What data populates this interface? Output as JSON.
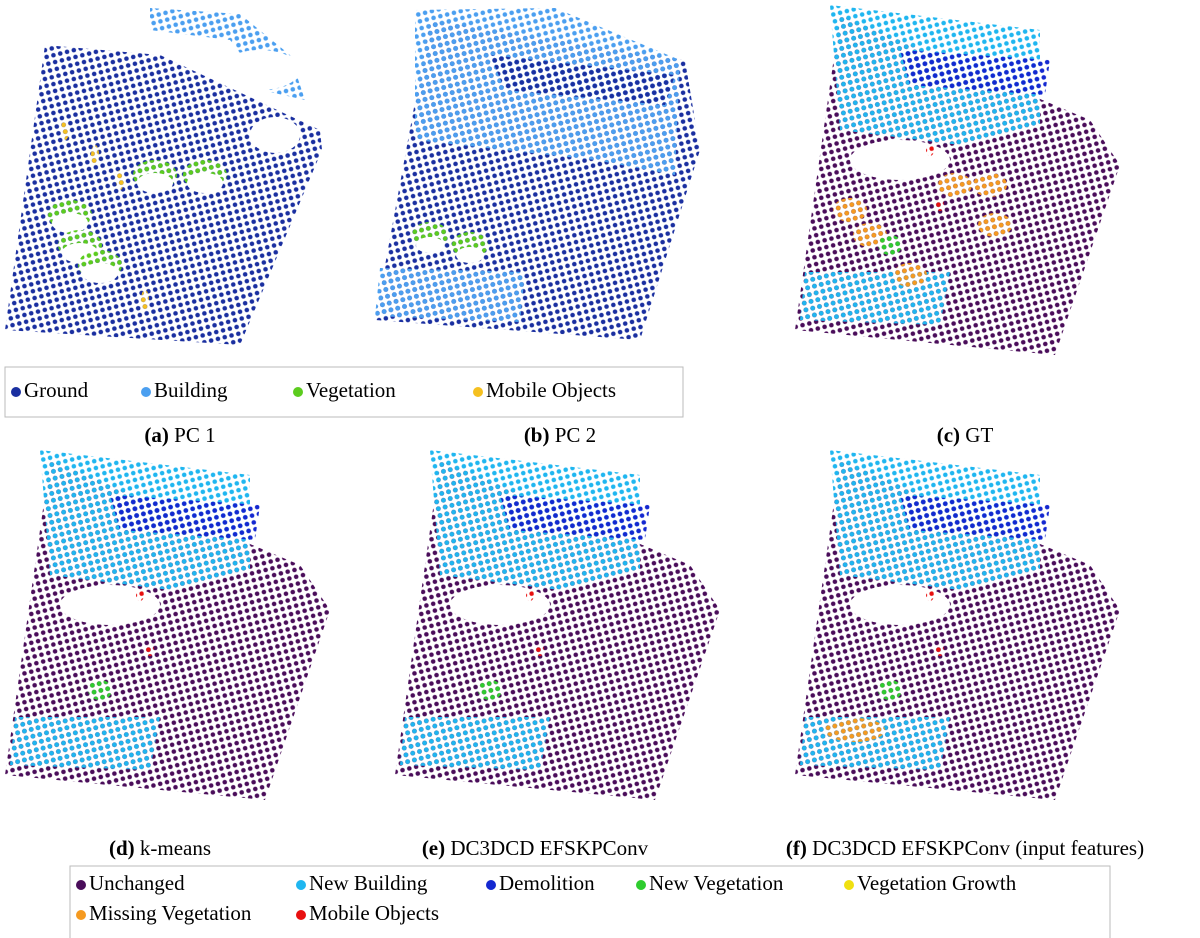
{
  "panels": [
    {
      "label": "(a)",
      "caption": "PC 1"
    },
    {
      "label": "(b)",
      "caption": "PC 2"
    },
    {
      "label": "(c)",
      "caption": "GT"
    },
    {
      "label": "(d)",
      "caption": "k-means"
    },
    {
      "label": "(e)",
      "caption": "DC3DCD EFSKPConv"
    },
    {
      "label": "(f)",
      "caption": "DC3DCD EFSKPConv (input features)"
    }
  ],
  "legend_top": {
    "items": [
      {
        "name": "Ground",
        "color": "#1a2fa0"
      },
      {
        "name": "Building",
        "color": "#4b9ff0"
      },
      {
        "name": "Vegetation",
        "color": "#5ccc1e"
      },
      {
        "name": "Mobile Objects",
        "color": "#f5c020"
      }
    ]
  },
  "legend_bottom": {
    "items": [
      {
        "name": "Unchanged",
        "color": "#4a0d5a"
      },
      {
        "name": "New Building",
        "color": "#1fb6f0"
      },
      {
        "name": "Demolition",
        "color": "#1428d0"
      },
      {
        "name": "New Vegetation",
        "color": "#2ecc2e"
      },
      {
        "name": "Vegetation Growth",
        "color": "#f0e010"
      },
      {
        "name": "Missing Vegetation",
        "color": "#f59a20"
      },
      {
        "name": "Mobile Objects",
        "color": "#e81010"
      }
    ]
  }
}
